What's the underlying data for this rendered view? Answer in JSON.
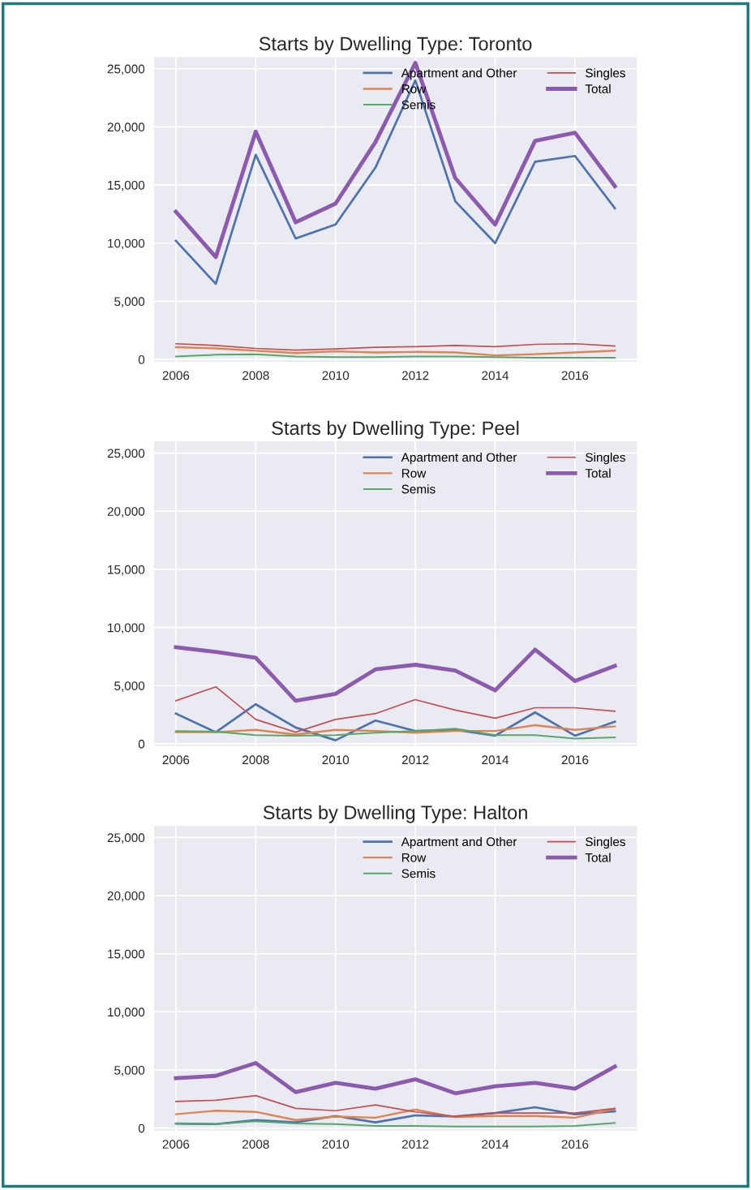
{
  "chart_data": [
    {
      "type": "line",
      "title": "Starts by Dwelling Type: Toronto",
      "x": [
        2006,
        2007,
        2008,
        2009,
        2010,
        2011,
        2012,
        2013,
        2014,
        2015,
        2016,
        2017
      ],
      "series": [
        {
          "name": "Apartment and Other",
          "color": "#4c72b0",
          "values": [
            10200,
            6500,
            17600,
            10400,
            11600,
            16500,
            24000,
            13600,
            10000,
            17000,
            17500,
            13000
          ]
        },
        {
          "name": "Row",
          "color": "#dd8452",
          "values": [
            1050,
            950,
            750,
            550,
            700,
            600,
            650,
            600,
            350,
            450,
            600,
            750
          ]
        },
        {
          "name": "Semis",
          "color": "#55a868",
          "values": [
            250,
            400,
            450,
            250,
            200,
            200,
            250,
            250,
            200,
            150,
            150,
            150
          ]
        },
        {
          "name": "Singles",
          "color": "#c44e52",
          "values": [
            1350,
            1200,
            950,
            800,
            900,
            1050,
            1100,
            1200,
            1100,
            1300,
            1350,
            1150
          ]
        },
        {
          "name": "Total",
          "color": "#8c5bb0",
          "values": [
            12700,
            8800,
            19600,
            11800,
            13400,
            18700,
            25500,
            15600,
            11600,
            18800,
            19500,
            14900
          ]
        }
      ],
      "xlim": [
        2005.45,
        2017.55
      ],
      "ylim": [
        -200,
        26000
      ],
      "xticks": [
        2006,
        2008,
        2010,
        2012,
        2014,
        2016
      ],
      "yticks": [
        {
          "value": 0,
          "label": "0"
        },
        {
          "value": 5000,
          "label": "5,000"
        },
        {
          "value": 10000,
          "label": "10,000"
        },
        {
          "value": 15000,
          "label": "15,000"
        },
        {
          "value": 20000,
          "label": "20,000"
        },
        {
          "value": 25000,
          "label": "25,000"
        }
      ],
      "grid": true,
      "legend": "top right"
    },
    {
      "type": "line",
      "title": "Starts by Dwelling Type: Peel",
      "x": [
        2006,
        2007,
        2008,
        2009,
        2010,
        2011,
        2012,
        2013,
        2014,
        2015,
        2016,
        2017
      ],
      "series": [
        {
          "name": "Apartment and Other",
          "color": "#4c72b0",
          "values": [
            2600,
            1000,
            3400,
            1400,
            300,
            2000,
            1100,
            1200,
            700,
            2700,
            700,
            1900
          ]
        },
        {
          "name": "Row",
          "color": "#dd8452",
          "values": [
            1000,
            1000,
            1200,
            800,
            1200,
            1100,
            950,
            1100,
            1100,
            1600,
            1200,
            1500
          ]
        },
        {
          "name": "Semis",
          "color": "#55a868",
          "values": [
            1100,
            1050,
            750,
            700,
            750,
            950,
            1100,
            1300,
            750,
            750,
            450,
            550
          ]
        },
        {
          "name": "Singles",
          "color": "#c44e52",
          "values": [
            3700,
            4900,
            2100,
            1000,
            2100,
            2600,
            3800,
            2900,
            2200,
            3100,
            3100,
            2800
          ]
        },
        {
          "name": "Total",
          "color": "#8c5bb0",
          "values": [
            8300,
            7900,
            7400,
            3700,
            4300,
            6400,
            6800,
            6300,
            4600,
            8100,
            5400,
            6700
          ]
        }
      ],
      "xlim": [
        2005.45,
        2017.55
      ],
      "ylim": [
        -200,
        26000
      ],
      "xticks": [
        2006,
        2008,
        2010,
        2012,
        2014,
        2016
      ],
      "yticks": [
        {
          "value": 0,
          "label": "0"
        },
        {
          "value": 5000,
          "label": "5,000"
        },
        {
          "value": 10000,
          "label": "10,000"
        },
        {
          "value": 15000,
          "label": "15,000"
        },
        {
          "value": 20000,
          "label": "20,000"
        },
        {
          "value": 25000,
          "label": "25,000"
        }
      ],
      "grid": true,
      "legend": "top right"
    },
    {
      "type": "line",
      "title": "Starts by Dwelling Type: Halton",
      "x": [
        2006,
        2007,
        2008,
        2009,
        2010,
        2011,
        2012,
        2013,
        2014,
        2015,
        2016,
        2017
      ],
      "series": [
        {
          "name": "Apartment and Other",
          "color": "#4c72b0",
          "values": [
            400,
            350,
            700,
            500,
            1050,
            500,
            1100,
            1000,
            1300,
            1800,
            1200,
            1450
          ]
        },
        {
          "name": "Row",
          "color": "#dd8452",
          "values": [
            1200,
            1500,
            1400,
            700,
            1000,
            900,
            1600,
            950,
            1050,
            1050,
            900,
            1650
          ]
        },
        {
          "name": "Semis",
          "color": "#55a868",
          "values": [
            400,
            350,
            600,
            400,
            350,
            200,
            200,
            150,
            150,
            150,
            200,
            450
          ]
        },
        {
          "name": "Singles",
          "color": "#c44e52",
          "values": [
            2300,
            2400,
            2800,
            1700,
            1500,
            2000,
            1400,
            1000,
            1300,
            1300,
            1300,
            1700
          ]
        },
        {
          "name": "Total",
          "color": "#8c5bb0",
          "values": [
            4300,
            4500,
            5600,
            3100,
            3900,
            3400,
            4200,
            3000,
            3600,
            3900,
            3400,
            5300
          ]
        }
      ],
      "xlim": [
        2005.45,
        2017.55
      ],
      "ylim": [
        -200,
        26000
      ],
      "xticks": [
        2006,
        2008,
        2010,
        2012,
        2014,
        2016
      ],
      "yticks": [
        {
          "value": 0,
          "label": "0"
        },
        {
          "value": 5000,
          "label": "5,000"
        },
        {
          "value": 10000,
          "label": "10,000"
        },
        {
          "value": 15000,
          "label": "15,000"
        },
        {
          "value": 20000,
          "label": "20,000"
        },
        {
          "value": 25000,
          "label": "25,000"
        }
      ],
      "grid": true,
      "legend": "top right"
    }
  ]
}
